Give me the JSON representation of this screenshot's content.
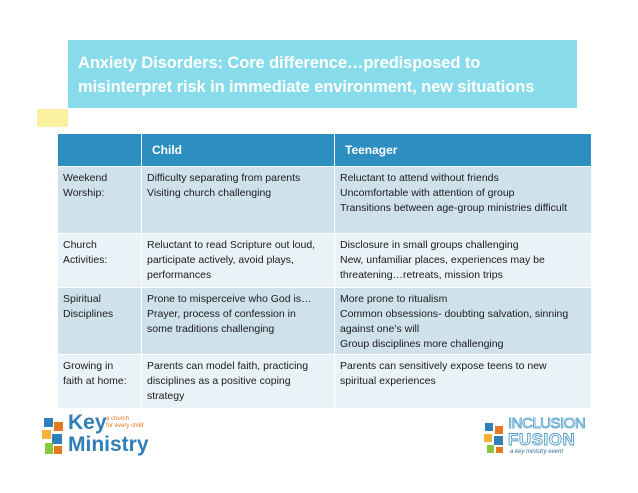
{
  "slide": {
    "title_line1": "Anxiety Disorders: Core difference…predisposed to",
    "title_line2": "misinterpret risk in immediate environment, new situations"
  },
  "table": {
    "headers": [
      "",
      "Child",
      "Teenager"
    ],
    "rows": [
      {
        "label": [
          "Weekend",
          "Worship:"
        ],
        "child": [
          "Difficulty separating from parents",
          "Visiting church challenging"
        ],
        "teen": [
          "Reluctant to attend without friends",
          "Uncomfortable with attention of group",
          "Transitions between age-group ministries difficult"
        ]
      },
      {
        "label": [
          "Church",
          "Activities:"
        ],
        "child": [
          "Reluctant to read Scripture out loud,",
          "participate actively, avoid plays,",
          "performances"
        ],
        "teen": [
          "Disclosure in small groups challenging",
          "New, unfamiliar places, experiences may be",
          "threatening…retreats, mission trips"
        ]
      },
      {
        "label": [
          "Spiritual",
          "Disciplines"
        ],
        "child": [
          "Prone to misperceive who God is…",
          "Prayer, process of confession in",
          "some traditions challenging"
        ],
        "teen": [
          "More prone to ritualism",
          "Common obsessions- doubting salvation, sinning",
          "against one’s will",
          "Group disciplines more challenging"
        ]
      },
      {
        "label": [
          "Growing in",
          "faith at home:"
        ],
        "child": [
          "Parents can model faith, practicing",
          "disciplines as a positive coping",
          "strategy"
        ],
        "teen": [
          "Parents can sensitively expose teens to new",
          "spiritual experiences"
        ]
      }
    ]
  },
  "logos": {
    "key_ministry": {
      "word1": "Key",
      "word2": "Ministry",
      "tagline1": "a church",
      "tagline2": "for every child"
    },
    "inclusion_fusion": {
      "word1": "INCLUSION",
      "word2": "FUSION",
      "tagline": "a key ministry event"
    }
  },
  "colors": {
    "title_band": "#87dbea",
    "header_row": "#2c8fbf",
    "row_dark": "#cfe2ec",
    "row_light": "#e9f2f6",
    "accent_yellow": "#fbf2a1",
    "brand_blue": "#2f7fb8",
    "brand_orange": "#e6791f"
  }
}
